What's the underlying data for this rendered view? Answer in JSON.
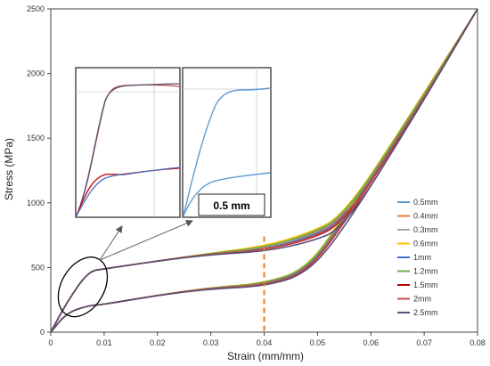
{
  "chart_data": {
    "type": "line",
    "xlabel": "Strain (mm/mm)",
    "ylabel": "Stress (MPa)",
    "xlim": [
      0,
      0.08
    ],
    "ylim": [
      0,
      2500
    ],
    "x_ticks": [
      "0",
      "0.01",
      "0.02",
      "0.03",
      "0.04",
      "0.05",
      "0.06",
      "0.07",
      "0.08"
    ],
    "y_ticks": [
      "0",
      "500",
      "1000",
      "1500",
      "2000",
      "2500"
    ],
    "grid": false,
    "legend_position": "right",
    "reference_line": {
      "x": 0.04,
      "color": "#f07a1a",
      "style": "dashed"
    },
    "inset_label": "0.5 mm",
    "colors": {
      "0.5mm": "#5b9bd5",
      "0.4mm": "#ed7d31",
      "0.3mm": "#a5a5a5",
      "0.6mm": "#ffc000",
      "1mm": "#4472c4",
      "1.2mm": "#70ad47",
      "1.5mm": "#c00000",
      "2mm": "#c0504d",
      "2.5mm": "#5a4e74"
    },
    "series": [
      {
        "name": "0.5mm",
        "upper_y": [
          0,
          230,
          470,
          490,
          550,
          610,
          650,
          740,
          880,
          1700,
          2500
        ],
        "lower_y": [
          0,
          150,
          205,
          215,
          285,
          345,
          375,
          480,
          880,
          1700,
          2500
        ]
      },
      {
        "name": "0.4mm",
        "upper_y": [
          0,
          230,
          470,
          490,
          550,
          610,
          645,
          735,
          870,
          1690,
          2500
        ],
        "lower_y": [
          0,
          150,
          205,
          215,
          285,
          345,
          372,
          475,
          870,
          1690,
          2500
        ]
      },
      {
        "name": "0.3mm",
        "upper_y": [
          0,
          230,
          470,
          490,
          550,
          610,
          645,
          730,
          860,
          1680,
          2500
        ],
        "lower_y": [
          0,
          150,
          205,
          215,
          285,
          345,
          370,
          470,
          860,
          1680,
          2500
        ]
      },
      {
        "name": "0.6mm",
        "upper_y": [
          0,
          230,
          470,
          490,
          550,
          610,
          665,
          760,
          900,
          1720,
          2500
        ],
        "lower_y": [
          0,
          150,
          205,
          215,
          285,
          345,
          378,
          490,
          900,
          1720,
          2500
        ]
      },
      {
        "name": "1mm",
        "upper_y": [
          0,
          230,
          470,
          490,
          550,
          605,
          640,
          725,
          860,
          1690,
          2500
        ],
        "lower_y": [
          0,
          150,
          205,
          215,
          285,
          340,
          368,
          470,
          860,
          1690,
          2500
        ]
      },
      {
        "name": "1.2mm",
        "upper_y": [
          0,
          230,
          470,
          490,
          550,
          610,
          655,
          750,
          890,
          1710,
          2500
        ],
        "lower_y": [
          0,
          150,
          205,
          215,
          285,
          345,
          376,
          485,
          890,
          1710,
          2500
        ]
      },
      {
        "name": "1.5mm",
        "upper_y": [
          0,
          230,
          470,
          490,
          550,
          605,
          635,
          710,
          840,
          1675,
          2500
        ],
        "lower_y": [
          0,
          150,
          205,
          215,
          285,
          340,
          362,
          460,
          840,
          1675,
          2500
        ]
      },
      {
        "name": "2mm",
        "upper_y": [
          0,
          230,
          470,
          490,
          550,
          605,
          638,
          715,
          850,
          1680,
          2500
        ],
        "lower_y": [
          0,
          150,
          205,
          215,
          285,
          340,
          365,
          462,
          850,
          1680,
          2500
        ]
      },
      {
        "name": "2.5mm",
        "upper_y": [
          0,
          230,
          470,
          490,
          550,
          600,
          625,
          690,
          800,
          1660,
          2500
        ],
        "lower_y": [
          0,
          150,
          205,
          215,
          285,
          335,
          355,
          450,
          800,
          1660,
          2500
        ]
      }
    ],
    "x": [
      0,
      0.003,
      0.007,
      0.01,
      0.02,
      0.03,
      0.04,
      0.048,
      0.055,
      0.068,
      0.08
    ]
  }
}
